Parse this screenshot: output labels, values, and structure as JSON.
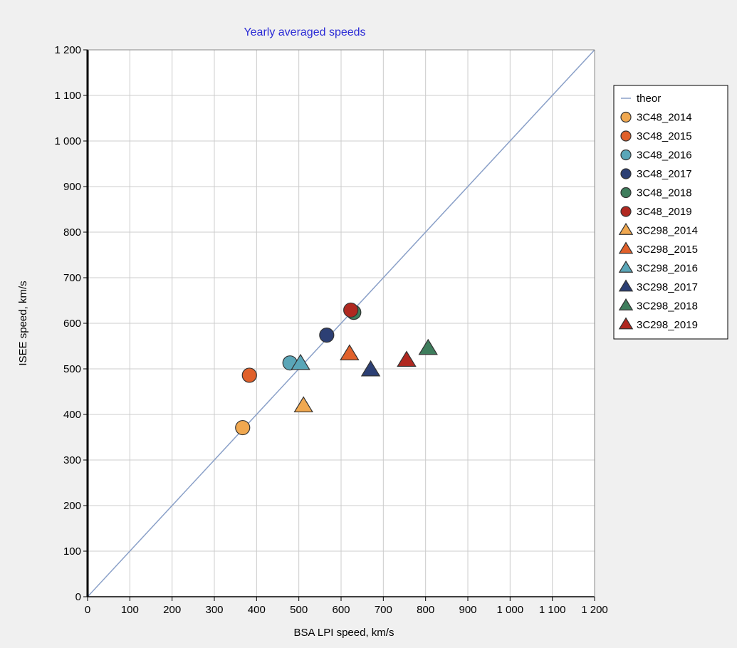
{
  "chart_data": {
    "type": "scatter",
    "title": "Yearly averaged speeds",
    "xlabel": "BSA LPI speed, km/s",
    "ylabel": "ISEE speed, km/s",
    "xlim": [
      0,
      1200
    ],
    "ylim": [
      0,
      1200
    ],
    "xticks": [
      0,
      100,
      200,
      300,
      400,
      500,
      600,
      700,
      800,
      900,
      1000,
      1100,
      1200
    ],
    "yticks": [
      0,
      100,
      200,
      300,
      400,
      500,
      600,
      700,
      800,
      900,
      1000,
      1100,
      1200
    ],
    "xtick_labels": [
      "0",
      "100",
      "200",
      "300",
      "400",
      "500",
      "600",
      "700",
      "800",
      "900",
      "1 000",
      "1 100",
      "1 200"
    ],
    "ytick_labels": [
      "0",
      "100",
      "200",
      "300",
      "400",
      "500",
      "600",
      "700",
      "800",
      "900",
      "1 000",
      "1 100",
      "1 200"
    ],
    "grid": true,
    "legend_position": "right",
    "colors": {
      "title": "#2b2bd6",
      "theor_line": "#8aa0c8",
      "grid": "#cccccc",
      "plot_bg": "#ffffff"
    },
    "line": {
      "name": "theor",
      "x": [
        0,
        1200
      ],
      "y": [
        0,
        1200
      ],
      "color": "#8aa0c8"
    },
    "series": [
      {
        "name": "3C48_2014",
        "marker": "circle",
        "color": "#f0a850",
        "x": [
          367
        ],
        "y": [
          371
        ]
      },
      {
        "name": "3C48_2015",
        "marker": "circle",
        "color": "#e0602a",
        "x": [
          383
        ],
        "y": [
          486
        ]
      },
      {
        "name": "3C48_2016",
        "marker": "circle",
        "color": "#5aa6b8",
        "x": [
          479
        ],
        "y": [
          513
        ]
      },
      {
        "name": "3C48_2017",
        "marker": "circle",
        "color": "#2c3f74",
        "x": [
          566
        ],
        "y": [
          574
        ]
      },
      {
        "name": "3C48_2018",
        "marker": "circle",
        "color": "#3e7d5c",
        "x": [
          630
        ],
        "y": [
          624
        ]
      },
      {
        "name": "3C48_2019",
        "marker": "circle",
        "color": "#b02820",
        "x": [
          623
        ],
        "y": [
          629
        ]
      },
      {
        "name": "3C298_2014",
        "marker": "triangle",
        "color": "#f0a850",
        "x": [
          511
        ],
        "y": [
          418
        ]
      },
      {
        "name": "3C298_2015",
        "marker": "triangle",
        "color": "#e0602a",
        "x": [
          620
        ],
        "y": [
          532
        ]
      },
      {
        "name": "3C298_2016",
        "marker": "triangle",
        "color": "#5aa6b8",
        "x": [
          504
        ],
        "y": [
          511
        ]
      },
      {
        "name": "3C298_2017",
        "marker": "triangle",
        "color": "#2c3f74",
        "x": [
          670
        ],
        "y": [
          497
        ]
      },
      {
        "name": "3C298_2018",
        "marker": "triangle",
        "color": "#3e7d5c",
        "x": [
          806
        ],
        "y": [
          544
        ]
      },
      {
        "name": "3C298_2019",
        "marker": "triangle",
        "color": "#b02820",
        "x": [
          755
        ],
        "y": [
          518
        ]
      }
    ]
  }
}
